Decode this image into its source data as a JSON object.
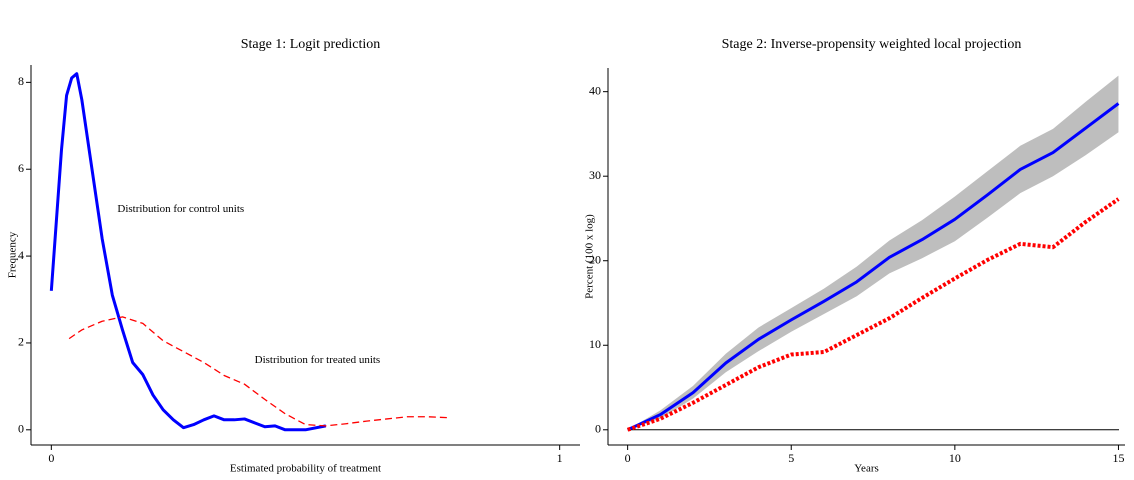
{
  "chart_data": [
    {
      "type": "line",
      "title": "Stage 1: Logit prediction",
      "x_label": "Estimated probability of treatment",
      "y_label": "Frequency",
      "xlim": [
        -0.04,
        1.04
      ],
      "ylim": [
        -0.35,
        8.4
      ],
      "xticks": [
        0,
        1
      ],
      "yticks": [
        0,
        2,
        4,
        6,
        8
      ],
      "series": [
        {
          "color": "#0000ff",
          "line_style": "solid",
          "x": [
            0,
            0.02,
            0.03,
            0.04,
            0.05,
            0.06,
            0.08,
            0.1,
            0.12,
            0.14,
            0.16,
            0.18,
            0.2,
            0.22,
            0.24,
            0.26,
            0.28,
            0.3,
            0.32,
            0.34,
            0.36,
            0.38,
            0.4,
            0.42,
            0.44,
            0.46,
            0.5,
            0.54
          ],
          "values": [
            3.2,
            6.45,
            7.7,
            8.1,
            8.2,
            7.6,
            6.0,
            4.4,
            3.1,
            2.3,
            1.55,
            1.27,
            0.8,
            0.46,
            0.23,
            0.05,
            0.12,
            0.23,
            0.32,
            0.23,
            0.23,
            0.25,
            0.16,
            0.07,
            0.09,
            0,
            0,
            0.09
          ]
        },
        {
          "color": "#ff0000",
          "line_style": "dashed",
          "x": [
            0.035,
            0.06,
            0.1,
            0.14,
            0.18,
            0.22,
            0.26,
            0.3,
            0.34,
            0.38,
            0.42,
            0.46,
            0.5,
            0.54,
            0.58,
            0.62,
            0.66,
            0.7,
            0.74,
            0.78
          ],
          "values": [
            2.1,
            2.3,
            2.5,
            2.6,
            2.45,
            2.05,
            1.8,
            1.55,
            1.25,
            1.05,
            0.7,
            0.37,
            0.12,
            0.09,
            0.14,
            0.2,
            0.25,
            0.3,
            0.3,
            0.28
          ]
        }
      ],
      "annotations": [
        {
          "text": "Distribution for control units",
          "color": "#0000ff",
          "x": 0.13,
          "y": 5.07
        },
        {
          "text": "Distribution for treated units",
          "color": "#ff0000",
          "x": 0.4,
          "y": 1.6
        }
      ]
    },
    {
      "type": "line",
      "title": "Stage 2: Inverse-propensity weighted local projection",
      "x_label": "Years",
      "y_label": "Percent (100 x log)",
      "xlim": [
        -0.6,
        15.2
      ],
      "ylim": [
        -1.8,
        42.8
      ],
      "xticks": [
        0,
        5,
        10,
        15
      ],
      "yticks": [
        0,
        10,
        20,
        30,
        40
      ],
      "reference_line": 0,
      "band": {
        "color": "#bebebe",
        "x": [
          0,
          1,
          2,
          3,
          4,
          5,
          6,
          7,
          8,
          9,
          10,
          11,
          12,
          13,
          14,
          15
        ],
        "lower": [
          0,
          1.3,
          3.7,
          6.8,
          9.3,
          11.6,
          13.7,
          15.8,
          18.5,
          20.3,
          22.3,
          25.1,
          28.0,
          30.0,
          32.5,
          35.2
        ],
        "upper": [
          0,
          2.3,
          5.2,
          9.0,
          12.1,
          14.4,
          16.7,
          19.3,
          22.4,
          24.8,
          27.6,
          30.6,
          33.6,
          35.6,
          38.8,
          41.9
        ]
      },
      "series": [
        {
          "color": "#0000ff",
          "line_style": "solid",
          "x": [
            0,
            1,
            2,
            3,
            4,
            5,
            6,
            7,
            8,
            9,
            10,
            11,
            12,
            13,
            14,
            15
          ],
          "values": [
            0,
            1.8,
            4.4,
            7.9,
            10.7,
            13.0,
            15.2,
            17.5,
            20.4,
            22.5,
            24.9,
            27.8,
            30.8,
            32.8,
            35.7,
            38.6
          ]
        },
        {
          "color": "#ff0000",
          "line_style": "dotted",
          "x": [
            0,
            1,
            2,
            3,
            4,
            5,
            6,
            7,
            8,
            9,
            10,
            11,
            12,
            13,
            14,
            15
          ],
          "values": [
            0,
            1.3,
            3.2,
            5.3,
            7.4,
            8.9,
            9.2,
            11.2,
            13.2,
            15.6,
            17.9,
            20.1,
            22.0,
            21.6,
            24.6,
            27.3
          ]
        }
      ]
    }
  ]
}
